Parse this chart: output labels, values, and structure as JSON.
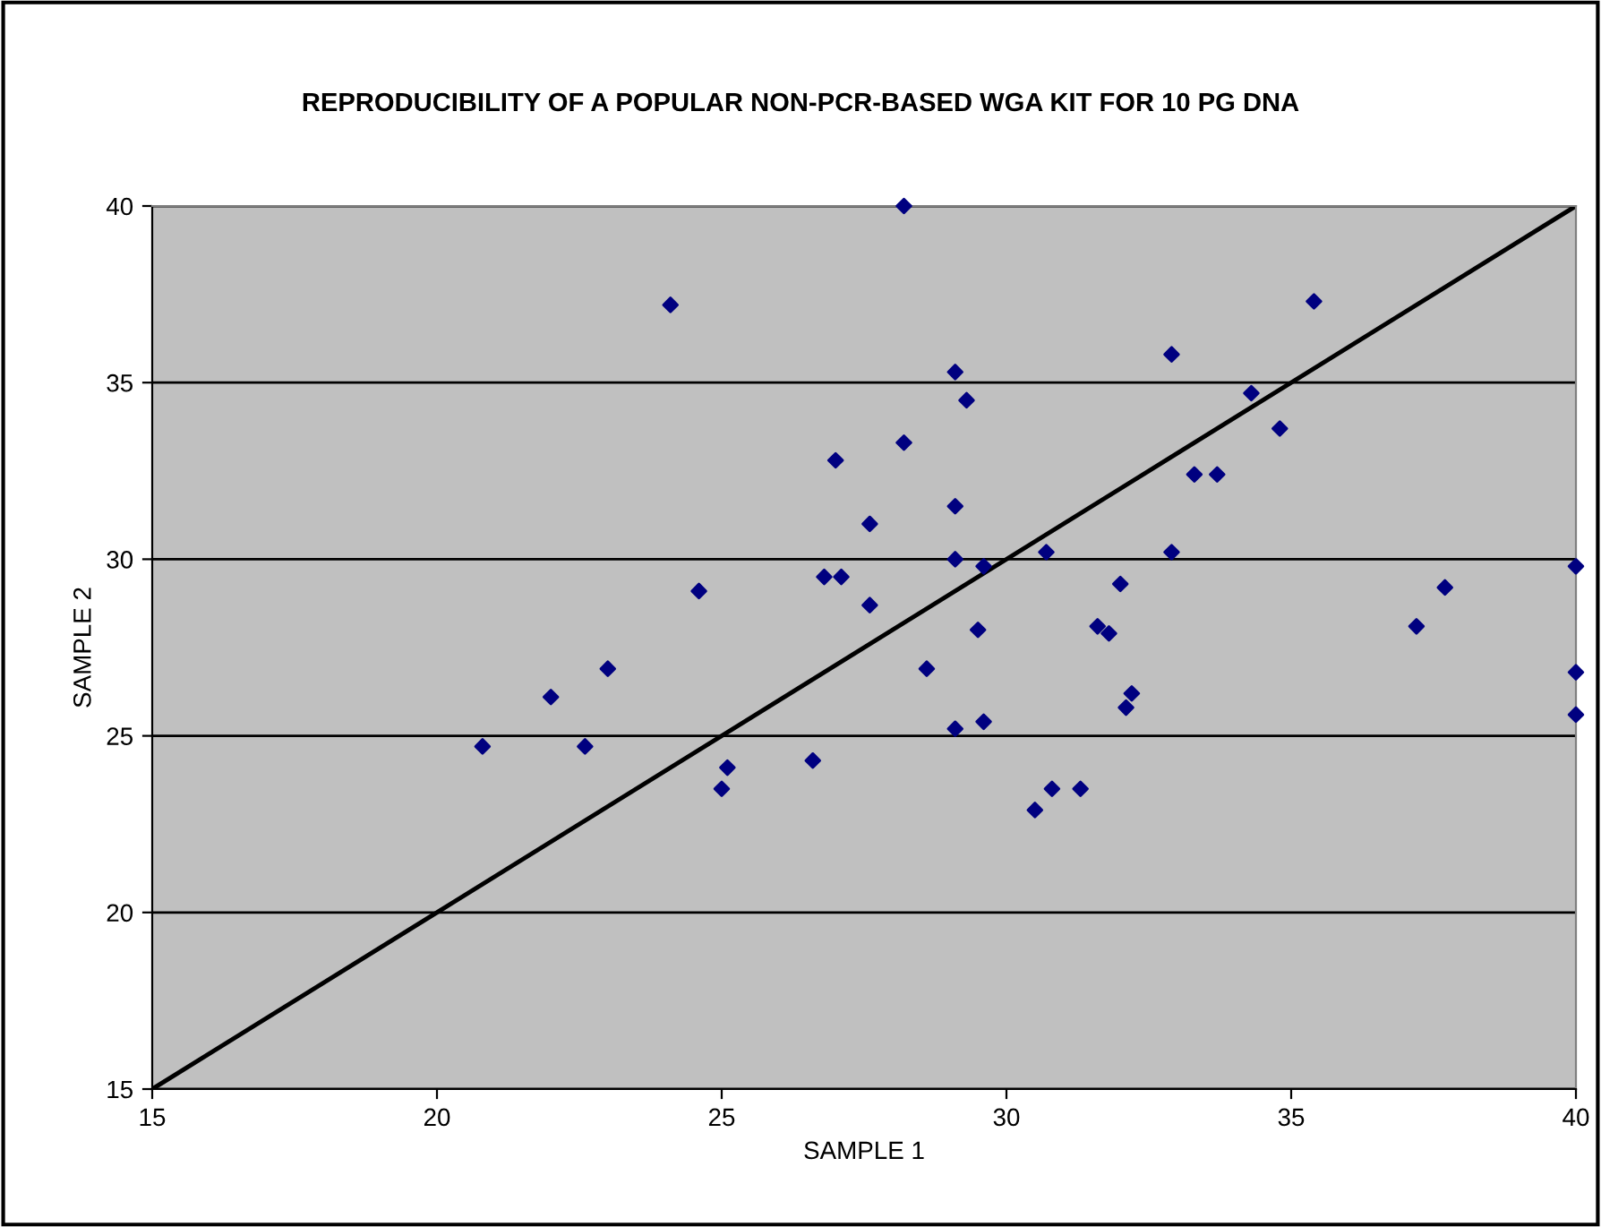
{
  "chart_data": {
    "type": "scatter",
    "title": "REPRODUCIBILITY OF A POPULAR NON-PCR-BASED WGA KIT FOR 10 PG DNA",
    "xlabel": "SAMPLE 1",
    "ylabel": "SAMPLE 2",
    "xlim": [
      15,
      40
    ],
    "ylim": [
      15,
      40
    ],
    "xticks": [
      15,
      20,
      25,
      30,
      35,
      40
    ],
    "yticks": [
      15,
      20,
      25,
      30,
      35,
      40
    ],
    "grid": "y",
    "legend": false,
    "series": [
      {
        "color": "#000080",
        "marker": "diamond",
        "x": [
          24.1,
          27.0,
          27.6,
          26.8,
          27.1,
          24.6,
          27.6,
          23.0,
          22.0,
          20.8,
          22.6,
          26.6,
          25.1,
          25.0,
          28.2,
          35.4,
          32.9,
          29.1,
          29.3,
          34.3,
          34.8,
          28.2,
          33.3,
          33.7,
          29.1,
          29.1,
          30.7,
          32.9,
          29.6,
          40.0,
          37.7,
          32.0,
          31.6,
          31.8,
          37.2,
          29.5,
          28.6,
          40.0,
          32.2,
          32.1,
          40.0,
          29.1,
          29.6,
          30.8,
          31.3,
          30.5
        ],
        "values": [
          37.2,
          32.8,
          31.0,
          29.5,
          29.5,
          29.1,
          28.7,
          26.9,
          26.1,
          24.7,
          24.7,
          24.3,
          24.1,
          23.5,
          40.0,
          37.3,
          35.8,
          35.3,
          34.5,
          34.7,
          33.7,
          33.3,
          32.4,
          32.4,
          31.5,
          30.0,
          30.2,
          30.2,
          29.8,
          29.8,
          29.2,
          29.3,
          28.1,
          27.9,
          28.1,
          28.0,
          26.9,
          26.8,
          26.2,
          25.8,
          25.6,
          25.2,
          25.4,
          23.5,
          23.5,
          22.9
        ]
      },
      {
        "type": "line",
        "color": "#000000",
        "marker": "none",
        "line_style": "solid",
        "x": [
          15,
          40
        ],
        "values": [
          15,
          40
        ]
      }
    ]
  }
}
